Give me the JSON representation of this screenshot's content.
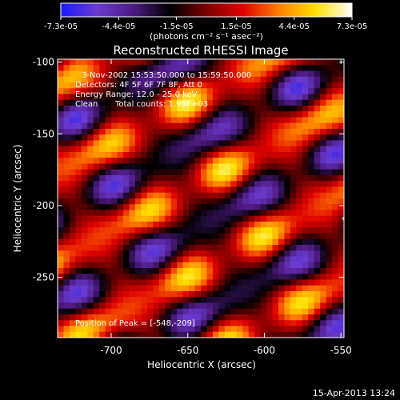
{
  "colorbar": {
    "colors": [
      "#1a1aff",
      "#6a3bd0",
      "#4d1a80",
      "#000000",
      "#7a0000",
      "#e00000",
      "#ff8000",
      "#ffe000",
      "#ffffff"
    ],
    "ticks": [
      "-7.3e-05",
      "-4.4e-05",
      "-1.5e-05",
      "1.5e-05",
      "4.4e-05",
      "7.3e-05"
    ],
    "unit_label": "(photons cm⁻² s⁻¹ asec⁻²)"
  },
  "chart_data": {
    "type": "heatmap",
    "title": "Reconstructed RHESSI Image",
    "xlabel": "Heliocentric X (arcsec)",
    "ylabel": "Heliocentric Y (arcsec)",
    "xlim": [
      -735,
      -548
    ],
    "ylim": [
      -292,
      -98
    ],
    "x_ticks": [
      "-700",
      "-650",
      "-600",
      "-550"
    ],
    "x_tick_values": [
      -700,
      -650,
      -600,
      -550
    ],
    "y_ticks": [
      "-100",
      "-150",
      "-200",
      "-250"
    ],
    "y_tick_values": [
      -100,
      -150,
      -200,
      -250
    ],
    "vmin": -7.3e-05,
    "vmax": 7.3e-05,
    "annotations": [
      "3-Nov-2002 15:53:50.000 to 15:59:50.000",
      "Detectors: 4F 5F 6F 7F 8F, Att 0",
      "Energy Range: 12.0 - 25.0 keV",
      "Clean",
      "Total counts: 1.99E+03"
    ],
    "peak_label": "Position of Peak = [-548,-209]",
    "peak": [
      -548,
      -209
    ]
  },
  "footer": {
    "date": "15-Apr-2013 13:24"
  }
}
